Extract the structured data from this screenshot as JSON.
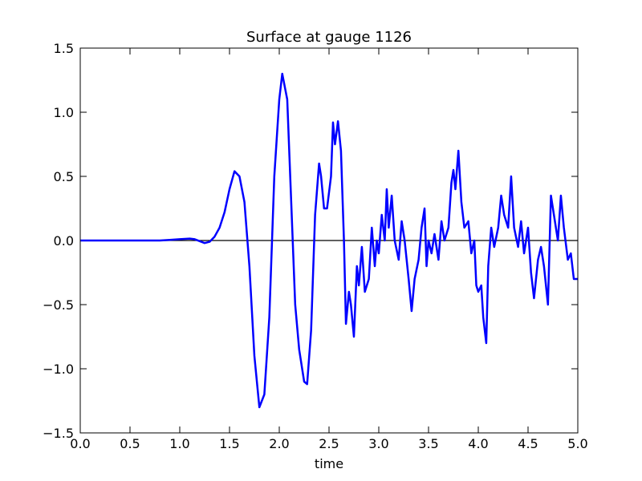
{
  "chart_data": {
    "type": "line",
    "title": "Surface at gauge 1126",
    "x_label": "time",
    "x": [
      0,
      0.8,
      0.9,
      1.0,
      1.1,
      1.15,
      1.2,
      1.25,
      1.3,
      1.35,
      1.4,
      1.45,
      1.5,
      1.55,
      1.6,
      1.65,
      1.7,
      1.75,
      1.8,
      1.85,
      1.9,
      1.95,
      2.0,
      2.03,
      2.08,
      2.12,
      2.16,
      2.2,
      2.25,
      2.28,
      2.32,
      2.36,
      2.4,
      2.42,
      2.45,
      2.48,
      2.52,
      2.54,
      2.56,
      2.59,
      2.62,
      2.65,
      2.67,
      2.7,
      2.72,
      2.75,
      2.78,
      2.8,
      2.83,
      2.86,
      2.9,
      2.93,
      2.96,
      2.98,
      3.0,
      3.03,
      3.06,
      3.08,
      3.1,
      3.13,
      3.16,
      3.2,
      3.23,
      3.26,
      3.3,
      3.33,
      3.36,
      3.4,
      3.43,
      3.46,
      3.48,
      3.5,
      3.53,
      3.56,
      3.6,
      3.63,
      3.66,
      3.7,
      3.73,
      3.75,
      3.77,
      3.8,
      3.83,
      3.86,
      3.9,
      3.93,
      3.96,
      3.98,
      4.0,
      4.03,
      4.05,
      4.08,
      4.1,
      4.13,
      4.16,
      4.2,
      4.23,
      4.26,
      4.3,
      4.33,
      4.36,
      4.4,
      4.43,
      4.46,
      4.5,
      4.53,
      4.56,
      4.6,
      4.63,
      4.66,
      4.7,
      4.73,
      4.76,
      4.8,
      4.83,
      4.86,
      4.9,
      4.93,
      4.96,
      5.0
    ],
    "series": [
      {
        "color": "#0000ff",
        "values": [
          0,
          0,
          0.005,
          0.01,
          0.015,
          0.01,
          -0.005,
          -0.02,
          -0.01,
          0.03,
          0.1,
          0.22,
          0.4,
          0.54,
          0.5,
          0.3,
          -0.2,
          -0.9,
          -1.3,
          -1.2,
          -0.6,
          0.5,
          1.1,
          1.3,
          1.1,
          0.3,
          -0.5,
          -0.85,
          -1.1,
          -1.12,
          -0.7,
          0.2,
          0.6,
          0.5,
          0.25,
          0.25,
          0.5,
          0.92,
          0.75,
          0.93,
          0.7,
          0.0,
          -0.65,
          -0.4,
          -0.5,
          -0.75,
          -0.2,
          -0.35,
          -0.05,
          -0.4,
          -0.3,
          0.1,
          -0.2,
          0.0,
          -0.1,
          0.2,
          0.0,
          0.4,
          0.1,
          0.35,
          0.0,
          -0.15,
          0.15,
          0.0,
          -0.3,
          -0.55,
          -0.3,
          -0.15,
          0.1,
          0.25,
          -0.2,
          0.0,
          -0.1,
          0.05,
          -0.15,
          0.15,
          0.0,
          0.1,
          0.45,
          0.55,
          0.4,
          0.7,
          0.3,
          0.1,
          0.15,
          -0.1,
          0.0,
          -0.35,
          -0.4,
          -0.35,
          -0.6,
          -0.8,
          -0.2,
          0.1,
          -0.05,
          0.1,
          0.35,
          0.2,
          0.1,
          0.5,
          0.1,
          -0.05,
          0.15,
          -0.1,
          0.1,
          -0.25,
          -0.45,
          -0.15,
          -0.05,
          -0.2,
          -0.5,
          0.35,
          0.2,
          0.0,
          0.35,
          0.1,
          -0.15,
          -0.1,
          -0.3,
          -0.3
        ]
      }
    ],
    "hline": 0,
    "xlim": [
      0,
      5
    ],
    "xticks": [
      {
        "value": 0,
        "label": "0.0"
      },
      0.5,
      {
        "value": 1,
        "label": "1.0"
      },
      1.5,
      {
        "value": 2,
        "label": "2.0"
      },
      2.5,
      {
        "value": 3,
        "label": "3.0"
      },
      3.5,
      {
        "value": 4,
        "label": "4.0"
      },
      4.5,
      {
        "value": 5,
        "label": "5.0"
      }
    ],
    "ylim": [
      -1.5,
      1.5
    ],
    "yticks": [
      {
        "value": -1.5,
        "label": "−1.5"
      },
      {
        "value": -1,
        "label": "−1.0"
      },
      {
        "value": -0.5,
        "label": "−0.5"
      },
      {
        "value": 0,
        "label": "0.0"
      },
      0.5,
      {
        "value": 1,
        "label": "1.0"
      },
      1.5
    ]
  }
}
